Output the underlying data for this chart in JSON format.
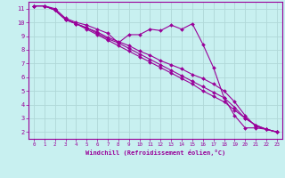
{
  "xlabel": "Windchill (Refroidissement éolien,°C)",
  "bg_color": "#c8f0f0",
  "line_color": "#990099",
  "grid_color": "#b0d8d8",
  "xlim": [
    -0.5,
    23.5
  ],
  "ylim": [
    1.5,
    11.5
  ],
  "xticks": [
    0,
    1,
    2,
    3,
    4,
    5,
    6,
    7,
    8,
    9,
    10,
    11,
    12,
    13,
    14,
    15,
    16,
    17,
    18,
    19,
    20,
    21,
    22,
    23
  ],
  "yticks": [
    2,
    3,
    4,
    5,
    6,
    7,
    8,
    9,
    10,
    11
  ],
  "line1_x": [
    0,
    1,
    2,
    3,
    4,
    5,
    6,
    7,
    8,
    9,
    10,
    11,
    12,
    13,
    14,
    15,
    16,
    17,
    18,
    19,
    20,
    21,
    22,
    23
  ],
  "line1_y": [
    11.2,
    11.2,
    11.0,
    10.3,
    10.0,
    9.8,
    9.5,
    9.2,
    8.5,
    9.1,
    9.1,
    9.5,
    9.4,
    9.8,
    9.5,
    9.9,
    8.4,
    6.7,
    4.5,
    3.2,
    2.3,
    2.3,
    2.2,
    2.0
  ],
  "line2_x": [
    0,
    1,
    2,
    3,
    4,
    5,
    6,
    7,
    8,
    9,
    10,
    11,
    12,
    13,
    14,
    15,
    16,
    17,
    18,
    19,
    20,
    21,
    22,
    23
  ],
  "line2_y": [
    11.2,
    11.2,
    10.9,
    10.2,
    9.9,
    9.6,
    9.3,
    8.9,
    8.6,
    8.3,
    7.9,
    7.6,
    7.2,
    6.9,
    6.6,
    6.2,
    5.9,
    5.5,
    5.0,
    4.2,
    3.2,
    2.4,
    2.2,
    2.0
  ],
  "line3_x": [
    0,
    1,
    2,
    3,
    4,
    5,
    6,
    7,
    8,
    9,
    10,
    11,
    12,
    13,
    14,
    15,
    16,
    17,
    18,
    19,
    20,
    21,
    22,
    23
  ],
  "line3_y": [
    11.2,
    11.2,
    10.9,
    10.2,
    9.9,
    9.6,
    9.2,
    8.8,
    8.5,
    8.1,
    7.7,
    7.3,
    6.9,
    6.5,
    6.1,
    5.7,
    5.3,
    4.9,
    4.5,
    3.8,
    3.0,
    2.5,
    2.2,
    2.0
  ],
  "line4_x": [
    0,
    1,
    2,
    3,
    4,
    5,
    6,
    7,
    8,
    9,
    10,
    11,
    12,
    13,
    14,
    15,
    16,
    17,
    18,
    19,
    20,
    21,
    22,
    23
  ],
  "line4_y": [
    11.2,
    11.2,
    10.9,
    10.2,
    9.9,
    9.5,
    9.1,
    8.7,
    8.3,
    7.9,
    7.5,
    7.1,
    6.7,
    6.3,
    5.9,
    5.5,
    5.0,
    4.6,
    4.2,
    3.6,
    3.0,
    2.5,
    2.2,
    2.0
  ]
}
